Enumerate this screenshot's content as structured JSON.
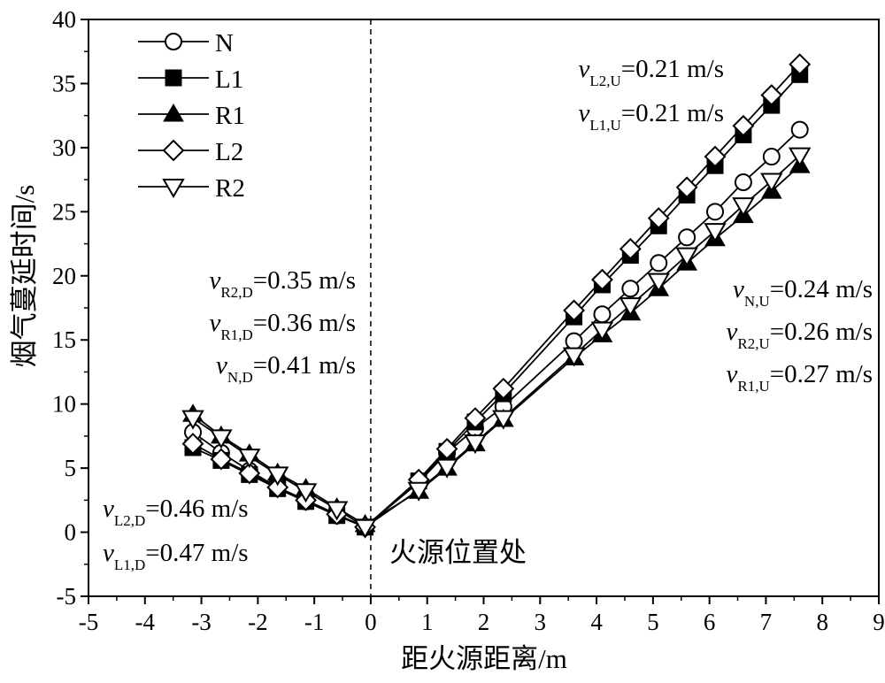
{
  "chart_data": {
    "type": "line",
    "xlabel": "距火源距离/m",
    "ylabel": "烟气蔓延时间/s",
    "xlim": [
      -5,
      9
    ],
    "ylim": [
      -5,
      40
    ],
    "xticks": [
      "-5",
      "-4",
      "-3",
      "-2",
      "-1",
      "0",
      "1",
      "2",
      "3",
      "4",
      "5",
      "6",
      "7",
      "8",
      "9"
    ],
    "yticks": [
      "-5",
      "0",
      "5",
      "10",
      "15",
      "20",
      "25",
      "30",
      "35",
      "40"
    ],
    "legend_position": "top-left",
    "fire_line_x": 0,
    "fire_label": "火源位置处",
    "series": [
      {
        "name": "N",
        "marker": "circle-open",
        "x": [
          -3.15,
          -2.65,
          -2.15,
          -1.65,
          -1.15,
          -0.6,
          -0.1,
          0.85,
          1.35,
          1.85,
          2.35,
          3.6,
          4.1,
          4.6,
          5.1,
          5.6,
          6.1,
          6.6,
          7.1,
          7.6
        ],
        "y": [
          7.8,
          6.2,
          4.8,
          3.5,
          2.4,
          1.3,
          0.4,
          3.9,
          6.2,
          8.1,
          9.8,
          14.9,
          17.0,
          19.0,
          21.0,
          23.0,
          25.0,
          27.3,
          29.3,
          31.4
        ]
      },
      {
        "name": "L1",
        "marker": "square-filled",
        "x": [
          -3.15,
          -2.65,
          -2.15,
          -1.65,
          -1.15,
          -0.6,
          -0.1,
          0.85,
          1.35,
          1.85,
          2.35,
          3.6,
          4.1,
          4.6,
          5.1,
          5.6,
          6.1,
          6.6,
          7.1,
          7.6
        ],
        "y": [
          6.6,
          5.6,
          4.5,
          3.4,
          2.4,
          1.3,
          0.4,
          4.0,
          6.3,
          8.6,
          10.8,
          16.8,
          19.3,
          21.6,
          23.9,
          26.3,
          28.6,
          31.0,
          33.3,
          35.7
        ]
      },
      {
        "name": "R1",
        "marker": "triangle-up-filled",
        "x": [
          -3.15,
          -2.65,
          -2.15,
          -1.65,
          -1.15,
          -0.6,
          -0.1,
          0.85,
          1.35,
          1.85,
          2.35,
          3.6,
          4.1,
          4.6,
          5.1,
          5.6,
          6.1,
          6.6,
          7.1,
          7.6
        ],
        "y": [
          9.2,
          7.5,
          6.1,
          4.6,
          3.4,
          1.9,
          0.6,
          3.2,
          5.0,
          6.9,
          8.8,
          13.6,
          15.4,
          17.1,
          19.0,
          21.0,
          22.9,
          24.7,
          26.6,
          28.6
        ]
      },
      {
        "name": "L2",
        "marker": "diamond-open",
        "x": [
          -3.15,
          -2.65,
          -2.15,
          -1.65,
          -1.15,
          -0.6,
          -0.1,
          0.85,
          1.35,
          1.85,
          2.35,
          3.6,
          4.1,
          4.6,
          5.1,
          5.6,
          6.1,
          6.6,
          7.1,
          7.6
        ],
        "y": [
          6.9,
          5.7,
          4.6,
          3.5,
          2.5,
          1.4,
          0.4,
          4.1,
          6.5,
          8.9,
          11.2,
          17.3,
          19.7,
          22.1,
          24.5,
          26.9,
          29.3,
          31.7,
          34.1,
          36.5
        ]
      },
      {
        "name": "R2",
        "marker": "triangle-down-open",
        "x": [
          -3.15,
          -2.65,
          -2.15,
          -1.65,
          -1.15,
          -0.6,
          -0.1,
          0.85,
          1.35,
          1.85,
          2.35,
          3.6,
          4.1,
          4.6,
          5.1,
          5.6,
          6.1,
          6.6,
          7.1,
          7.6
        ],
        "y": [
          8.9,
          7.4,
          5.9,
          4.5,
          3.2,
          1.8,
          0.4,
          3.3,
          5.1,
          7.0,
          8.9,
          13.8,
          15.8,
          17.7,
          19.6,
          21.6,
          23.5,
          25.5,
          27.4,
          29.4
        ]
      }
    ],
    "annotations_upper_right": [
      {
        "v": "v",
        "sub": "L2,U",
        "text": "=0.21 m/s"
      },
      {
        "v": "v",
        "sub": "L1,U",
        "text": "=0.21 m/s"
      }
    ],
    "annotations_mid_right": [
      {
        "v": "v",
        "sub": "N,U",
        "text": "=0.24 m/s"
      },
      {
        "v": "v",
        "sub": "R2,U",
        "text": "=0.26 m/s"
      },
      {
        "v": "v",
        "sub": "R1,U",
        "text": "=0.27 m/s"
      }
    ],
    "annotations_upper_left": [
      {
        "v": "v",
        "sub": "R2,D",
        "text": "=0.35 m/s"
      },
      {
        "v": "v",
        "sub": "R1,D",
        "text": "=0.36 m/s"
      },
      {
        "v": "v",
        "sub": "N,D",
        "text": "=0.41 m/s"
      }
    ],
    "annotations_lower_left": [
      {
        "v": "v",
        "sub": "L2,D",
        "text": "=0.46 m/s"
      },
      {
        "v": "v",
        "sub": "L1,D",
        "text": "=0.47 m/s"
      }
    ]
  }
}
